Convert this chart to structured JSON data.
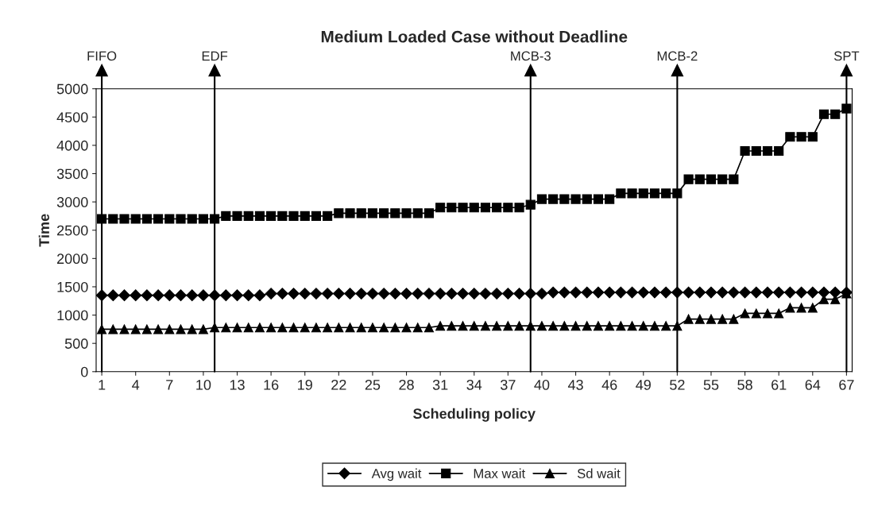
{
  "chart_data": {
    "type": "line",
    "title": "Medium Loaded Case without Deadline",
    "xlabel": "Scheduling policy",
    "ylabel": "Time",
    "x": [
      1,
      2,
      3,
      4,
      5,
      6,
      7,
      8,
      9,
      10,
      11,
      12,
      13,
      14,
      15,
      16,
      17,
      18,
      19,
      20,
      21,
      22,
      23,
      24,
      25,
      26,
      27,
      28,
      29,
      30,
      31,
      32,
      33,
      34,
      35,
      36,
      37,
      38,
      39,
      40,
      41,
      42,
      43,
      44,
      45,
      46,
      47,
      48,
      49,
      50,
      51,
      52,
      53,
      54,
      55,
      56,
      57,
      58,
      59,
      60,
      61,
      62,
      63,
      64,
      65,
      66,
      67
    ],
    "series": [
      {
        "name": "Avg wait",
        "color": "#000000",
        "marker": "diamond",
        "values": [
          1350,
          1350,
          1350,
          1350,
          1350,
          1350,
          1350,
          1350,
          1350,
          1350,
          1350,
          1350,
          1350,
          1350,
          1350,
          1380,
          1380,
          1380,
          1380,
          1380,
          1380,
          1380,
          1380,
          1380,
          1380,
          1380,
          1380,
          1380,
          1380,
          1380,
          1380,
          1380,
          1380,
          1380,
          1380,
          1380,
          1380,
          1380,
          1380,
          1380,
          1400,
          1400,
          1400,
          1400,
          1400,
          1400,
          1400,
          1400,
          1400,
          1400,
          1400,
          1400,
          1400,
          1400,
          1400,
          1400,
          1400,
          1400,
          1400,
          1400,
          1400,
          1400,
          1400,
          1400,
          1400,
          1400,
          1400
        ]
      },
      {
        "name": "Max wait",
        "color": "#000000",
        "marker": "square",
        "values": [
          2700,
          2700,
          2700,
          2700,
          2700,
          2700,
          2700,
          2700,
          2700,
          2700,
          2700,
          2750,
          2750,
          2750,
          2750,
          2750,
          2750,
          2750,
          2750,
          2750,
          2750,
          2800,
          2800,
          2800,
          2800,
          2800,
          2800,
          2800,
          2800,
          2800,
          2900,
          2900,
          2900,
          2900,
          2900,
          2900,
          2900,
          2900,
          2950,
          3050,
          3050,
          3050,
          3050,
          3050,
          3050,
          3050,
          3150,
          3150,
          3150,
          3150,
          3150,
          3150,
          3400,
          3400,
          3400,
          3400,
          3400,
          3900,
          3900,
          3900,
          3900,
          4150,
          4150,
          4150,
          4550,
          4550,
          4650
        ]
      },
      {
        "name": "Sd wait",
        "color": "#000000",
        "marker": "triangle",
        "values": [
          750,
          750,
          750,
          750,
          750,
          750,
          750,
          750,
          750,
          750,
          780,
          780,
          780,
          780,
          780,
          780,
          780,
          780,
          780,
          780,
          780,
          780,
          780,
          780,
          780,
          780,
          780,
          780,
          780,
          780,
          810,
          810,
          810,
          810,
          810,
          810,
          810,
          810,
          810,
          810,
          810,
          810,
          810,
          810,
          810,
          810,
          810,
          810,
          810,
          810,
          810,
          810,
          930,
          930,
          930,
          930,
          930,
          1030,
          1030,
          1030,
          1030,
          1130,
          1130,
          1130,
          1280,
          1280,
          1380
        ]
      }
    ],
    "xlim": [
      0.5,
      67.5
    ],
    "xticks": [
      1,
      4,
      7,
      10,
      13,
      16,
      19,
      22,
      25,
      28,
      31,
      34,
      37,
      40,
      43,
      46,
      49,
      52,
      55,
      58,
      61,
      64,
      67
    ],
    "ylim": [
      0,
      5000
    ],
    "yticks": [
      0,
      500,
      1000,
      1500,
      2000,
      2500,
      3000,
      3500,
      4000,
      4500,
      5000
    ],
    "ref_lines": [
      {
        "axis": "x",
        "value": 1,
        "label": "FIFO"
      },
      {
        "axis": "x",
        "value": 11,
        "label": "EDF"
      },
      {
        "axis": "x",
        "value": 39,
        "label": "MCB-3"
      },
      {
        "axis": "x",
        "value": 52,
        "label": "MCB-2"
      },
      {
        "axis": "x",
        "value": 67,
        "label": "SPT"
      }
    ],
    "legend": "bottom",
    "grid": false
  }
}
